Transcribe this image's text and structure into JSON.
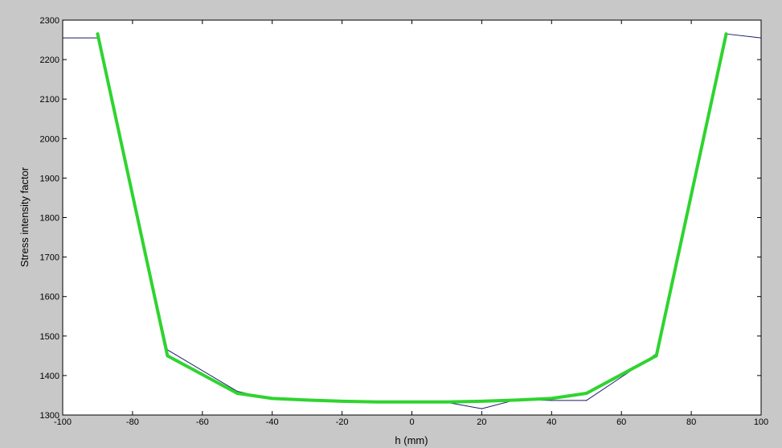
{
  "chart_data": {
    "type": "line",
    "title": "",
    "xlabel": "h (mm)",
    "ylabel": "Stress intensity factor",
    "xlim": [
      -100,
      100
    ],
    "ylim": [
      1300,
      2300
    ],
    "xticks": [
      -100,
      -80,
      -60,
      -40,
      -20,
      0,
      20,
      40,
      60,
      80,
      100
    ],
    "yticks": [
      1300,
      1400,
      1500,
      1600,
      1700,
      1800,
      1900,
      2000,
      2100,
      2200,
      2300
    ],
    "xtick_labels": [
      "-100",
      "-80",
      "-60",
      "-40",
      "-20",
      "0",
      "20",
      "40",
      "60",
      "80",
      "100"
    ],
    "ytick_labels": [
      "1300",
      "1400",
      "1500",
      "1600",
      "1700",
      "1800",
      "1900",
      "2000",
      "2100",
      "2200",
      "2300"
    ],
    "grid": false,
    "series": [
      {
        "color": "#1a1a6e",
        "style": "thin",
        "x": [
          -100,
          -90,
          -70,
          -50,
          -40,
          -30,
          -20,
          -10,
          0,
          10,
          20,
          30,
          40,
          50,
          70,
          90,
          100
        ],
        "y": [
          2255,
          2255,
          1465,
          1360,
          1340,
          1337,
          1335,
          1333,
          1332,
          1332,
          1316,
          1339,
          1337,
          1337,
          1455,
          2265,
          2255
        ]
      },
      {
        "color": "#2fd42f",
        "style": "thick",
        "x": [
          -90,
          -70,
          -50,
          -40,
          -30,
          -20,
          -10,
          0,
          10,
          20,
          30,
          40,
          50,
          70,
          90
        ],
        "y": [
          2265,
          1450,
          1355,
          1342,
          1338,
          1335,
          1333,
          1333,
          1333,
          1335,
          1338,
          1342,
          1355,
          1450,
          2265
        ]
      }
    ]
  }
}
